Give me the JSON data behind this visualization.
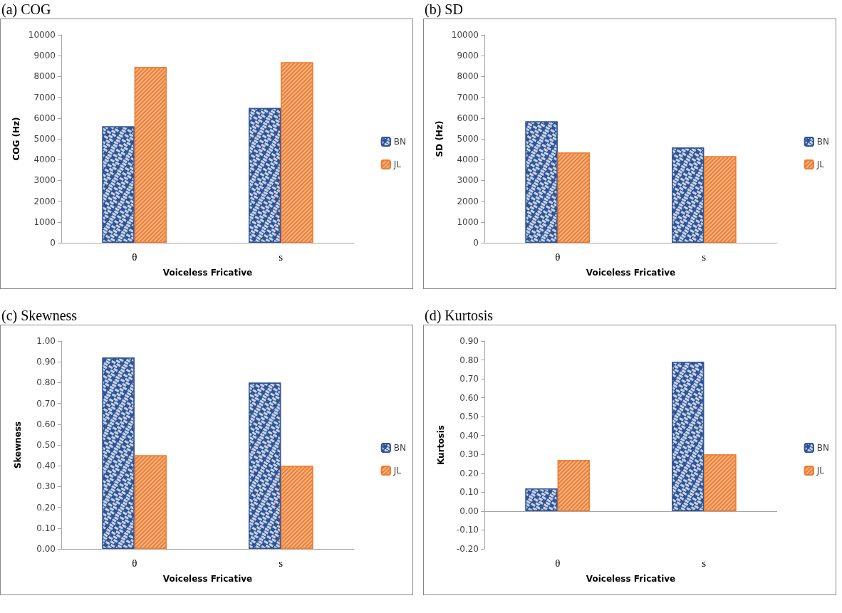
{
  "chart_data": [
    {
      "type": "bar",
      "title": "(a) COG",
      "xlabel": "Voiceless Fricative",
      "ylabel": "COG (Hz)",
      "categories": [
        "θ",
        "s"
      ],
      "series": [
        {
          "name": "BN",
          "color": "#2f5597",
          "values": [
            5600,
            6480
          ]
        },
        {
          "name": "JL",
          "color": "#ed7d31",
          "values": [
            8450,
            8680
          ]
        }
      ],
      "ylim": [
        0,
        10000
      ],
      "yticks": [
        0,
        1000,
        2000,
        3000,
        4000,
        5000,
        6000,
        7000,
        8000,
        9000,
        10000
      ],
      "grid": false,
      "legend": "right"
    },
    {
      "type": "bar",
      "title": "(b) SD",
      "xlabel": "Voiceless Fricative",
      "ylabel": "SD (Hz)",
      "categories": [
        "θ",
        "s"
      ],
      "series": [
        {
          "name": "BN",
          "color": "#2f5597",
          "values": [
            5840,
            4580
          ]
        },
        {
          "name": "JL",
          "color": "#ed7d31",
          "values": [
            4340,
            4160
          ]
        }
      ],
      "ylim": [
        0,
        10000
      ],
      "yticks": [
        0,
        1000,
        2000,
        3000,
        4000,
        5000,
        6000,
        7000,
        8000,
        9000,
        10000
      ],
      "grid": false,
      "legend": "right"
    },
    {
      "type": "bar",
      "title": "(c) Skewness",
      "xlabel": "Voiceless Fricative",
      "ylabel": "Skewness",
      "categories": [
        "θ",
        "s"
      ],
      "series": [
        {
          "name": "BN",
          "color": "#2f5597",
          "values": [
            0.92,
            0.8
          ]
        },
        {
          "name": "JL",
          "color": "#ed7d31",
          "values": [
            0.45,
            0.4
          ]
        }
      ],
      "ylim": [
        0,
        1
      ],
      "yticks": [
        {
          "value": 0,
          "label": "0.00"
        },
        {
          "value": 0.1,
          "label": "0.10"
        },
        {
          "value": 0.2,
          "label": "0.20"
        },
        {
          "value": 0.3,
          "label": "0.30"
        },
        {
          "value": 0.4,
          "label": "0.40"
        },
        {
          "value": 0.5,
          "label": "0.50"
        },
        {
          "value": 0.6,
          "label": "0.60"
        },
        {
          "value": 0.7,
          "label": "0.70"
        },
        {
          "value": 0.8,
          "label": "0.80"
        },
        {
          "value": 0.9,
          "label": "0.90"
        },
        {
          "value": 1,
          "label": "1.00"
        }
      ],
      "grid": false,
      "legend": "right"
    },
    {
      "type": "bar",
      "title": "(d) Kurtosis",
      "xlabel": "Voiceless Fricative",
      "ylabel": "Kurtosis",
      "categories": [
        "θ",
        "s"
      ],
      "series": [
        {
          "name": "BN",
          "color": "#2f5597",
          "values": [
            0.12,
            0.79
          ]
        },
        {
          "name": "JL",
          "color": "#ed7d31",
          "values": [
            0.27,
            0.3
          ]
        }
      ],
      "ylim": [
        -0.2,
        0.9
      ],
      "yticks": [
        {
          "value": -0.2,
          "label": "-0.20"
        },
        {
          "value": -0.1,
          "label": "-0.10"
        },
        {
          "value": 0,
          "label": "0.00"
        },
        {
          "value": 0.1,
          "label": "0.10"
        },
        {
          "value": 0.2,
          "label": "0.20"
        },
        {
          "value": 0.3,
          "label": "0.30"
        },
        {
          "value": 0.4,
          "label": "0.40"
        },
        {
          "value": 0.5,
          "label": "0.50"
        },
        {
          "value": 0.6,
          "label": "0.60"
        },
        {
          "value": 0.7,
          "label": "0.70"
        },
        {
          "value": 0.8,
          "label": "0.80"
        },
        {
          "value": 0.9,
          "label": "0.90"
        }
      ],
      "grid": false,
      "legend": "right",
      "ref_lines": [
        {
          "axis": "y",
          "value": 0,
          "color": "#a6a6a6"
        }
      ]
    }
  ]
}
